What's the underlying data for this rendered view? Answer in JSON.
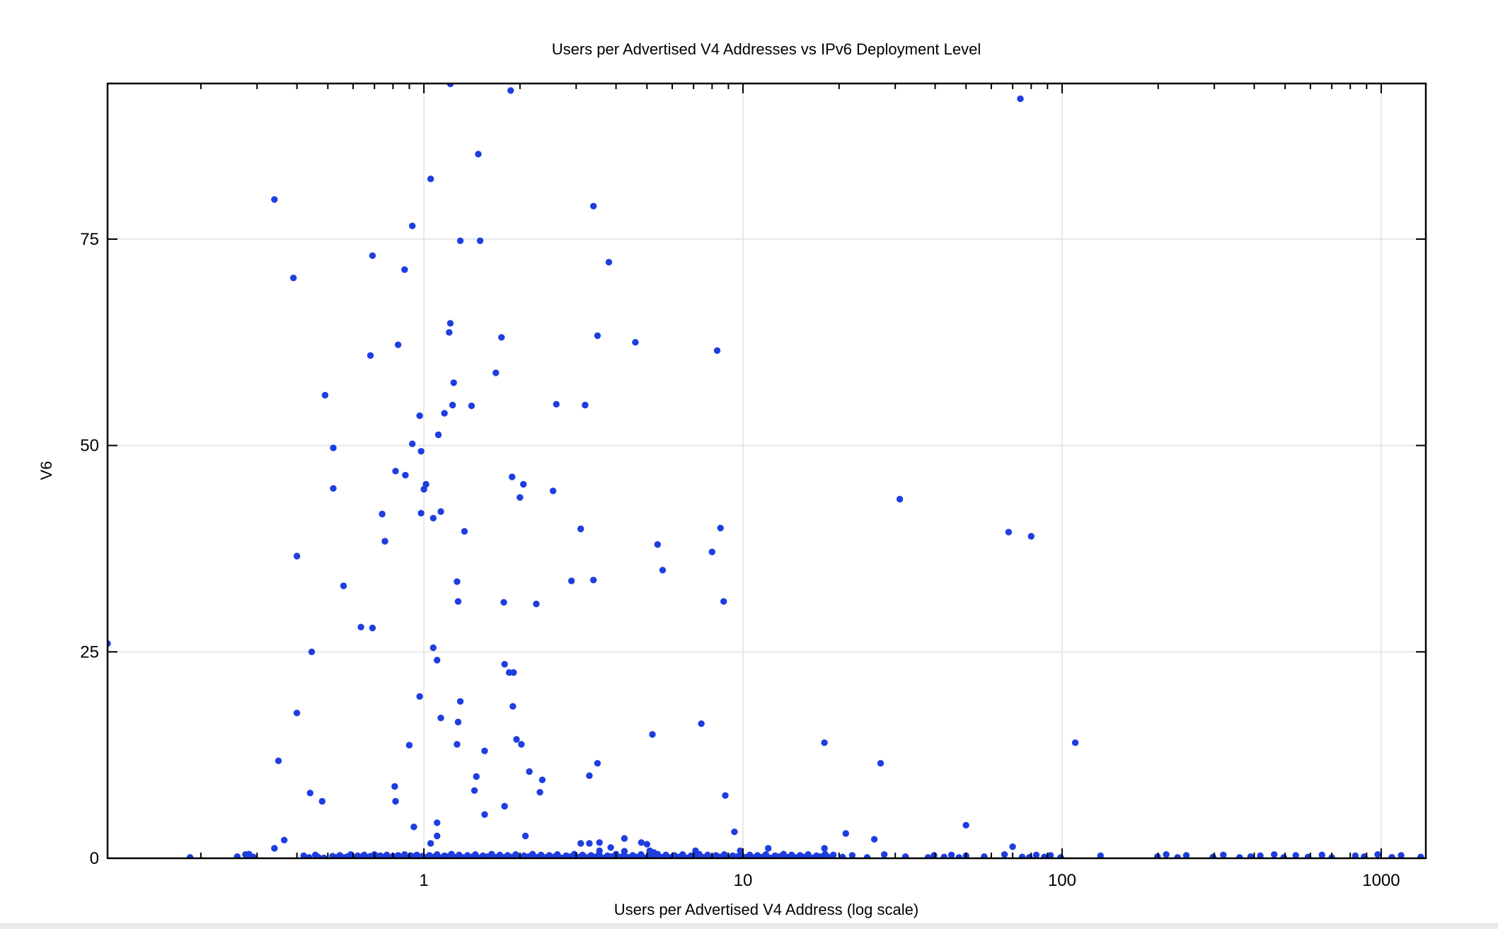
{
  "title": "Users per Advertised V4 Addresses vs IPv6 Deployment Level",
  "axes": {
    "x_label": "Users per Advertised V4 Address (log scale)",
    "y_label": "V6",
    "x_tick_labels": [
      "1",
      "10",
      "100",
      "1000"
    ],
    "y_tick_labels": [
      "0",
      "25",
      "50",
      "75"
    ]
  },
  "colors": {
    "point": "#1e3ee0",
    "grid": "#e8e8e8",
    "axis": "#000000",
    "background": "#ffffff",
    "bottom_strip": "#e9ebed"
  },
  "chart_data": {
    "type": "scatter",
    "title": "Users per Advertised V4 Addresses vs IPv6 Deployment Level",
    "xlabel": "Users per Advertised V4 Address (log scale)",
    "ylabel": "V6",
    "x_scale": "log",
    "xlim": [
      0.102,
      1380
    ],
    "ylim": [
      0,
      93.85
    ],
    "x_major_ticks": [
      1,
      10,
      100,
      1000
    ],
    "y_major_ticks": [
      0,
      25,
      50,
      75
    ],
    "grid": true,
    "legend": "none",
    "marker": {
      "shape": "circle",
      "radius": 4.7
    },
    "points": [
      [
        1.21,
        93.8
      ],
      [
        1.87,
        93.0
      ],
      [
        74,
        92.0
      ],
      [
        1.48,
        85.3
      ],
      [
        1.05,
        82.3
      ],
      [
        0.34,
        79.8
      ],
      [
        3.4,
        79.0
      ],
      [
        0.92,
        76.6
      ],
      [
        1.3,
        74.8
      ],
      [
        1.5,
        74.8
      ],
      [
        0.69,
        73.0
      ],
      [
        3.8,
        72.2
      ],
      [
        0.87,
        71.3
      ],
      [
        0.39,
        70.3
      ],
      [
        1.21,
        64.8
      ],
      [
        1.2,
        63.7
      ],
      [
        1.75,
        63.1
      ],
      [
        3.5,
        63.3
      ],
      [
        4.6,
        62.5
      ],
      [
        8.3,
        61.5
      ],
      [
        0.83,
        62.2
      ],
      [
        0.68,
        60.9
      ],
      [
        1.68,
        58.8
      ],
      [
        1.24,
        57.6
      ],
      [
        0.49,
        56.1
      ],
      [
        1.23,
        54.9
      ],
      [
        1.41,
        54.8
      ],
      [
        2.6,
        55.0
      ],
      [
        3.2,
        54.9
      ],
      [
        1.16,
        53.9
      ],
      [
        0.97,
        53.6
      ],
      [
        1.11,
        51.3
      ],
      [
        0.92,
        50.2
      ],
      [
        0.52,
        49.7
      ],
      [
        0.98,
        49.3
      ],
      [
        0.815,
        46.9
      ],
      [
        0.875,
        46.4
      ],
      [
        1.015,
        45.3
      ],
      [
        1.0,
        44.7
      ],
      [
        0.52,
        44.8
      ],
      [
        1.89,
        46.2
      ],
      [
        2.05,
        45.3
      ],
      [
        2.54,
        44.5
      ],
      [
        2.0,
        43.7
      ],
      [
        31,
        43.5
      ],
      [
        0.74,
        41.7
      ],
      [
        0.98,
        41.8
      ],
      [
        1.07,
        41.2
      ],
      [
        1.13,
        42.0
      ],
      [
        1.34,
        39.6
      ],
      [
        0.755,
        38.4
      ],
      [
        3.1,
        39.9
      ],
      [
        8.5,
        40.0
      ],
      [
        5.4,
        38.0
      ],
      [
        8.0,
        37.1
      ],
      [
        68,
        39.5
      ],
      [
        80,
        39.0
      ],
      [
        0.4,
        36.6
      ],
      [
        0.56,
        33.0
      ],
      [
        1.27,
        33.5
      ],
      [
        5.6,
        34.9
      ],
      [
        2.9,
        33.6
      ],
      [
        3.4,
        33.7
      ],
      [
        8.7,
        31.1
      ],
      [
        1.28,
        31.1
      ],
      [
        1.78,
        31.0
      ],
      [
        2.25,
        30.8
      ],
      [
        0.102,
        26.0
      ],
      [
        0.445,
        25.0
      ],
      [
        0.635,
        28.0
      ],
      [
        0.69,
        27.9
      ],
      [
        1.07,
        25.5
      ],
      [
        1.1,
        24.0
      ],
      [
        1.79,
        23.5
      ],
      [
        1.85,
        22.5
      ],
      [
        1.91,
        22.5
      ],
      [
        0.97,
        19.6
      ],
      [
        1.3,
        19.0
      ],
      [
        1.9,
        18.4
      ],
      [
        0.4,
        17.6
      ],
      [
        1.13,
        17.0
      ],
      [
        1.28,
        16.5
      ],
      [
        7.4,
        16.3
      ],
      [
        5.2,
        15.0
      ],
      [
        18,
        14.0
      ],
      [
        110,
        14.0
      ],
      [
        0.9,
        13.7
      ],
      [
        1.27,
        13.8
      ],
      [
        1.95,
        14.4
      ],
      [
        2.02,
        13.8
      ],
      [
        1.55,
        13.0
      ],
      [
        3.5,
        11.5
      ],
      [
        3.3,
        10.0
      ],
      [
        0.35,
        11.8
      ],
      [
        27,
        11.5
      ],
      [
        2.14,
        10.5
      ],
      [
        2.35,
        9.5
      ],
      [
        1.46,
        9.9
      ],
      [
        1.44,
        8.2
      ],
      [
        2.31,
        8.0
      ],
      [
        0.81,
        8.7
      ],
      [
        0.815,
        6.9
      ],
      [
        0.44,
        7.9
      ],
      [
        0.48,
        6.9
      ],
      [
        8.8,
        7.6
      ],
      [
        1.79,
        6.3
      ],
      [
        1.55,
        5.3
      ],
      [
        1.1,
        4.3
      ],
      [
        0.93,
        3.8
      ],
      [
        9.4,
        3.2
      ],
      [
        21,
        3.0
      ],
      [
        50,
        4.0
      ],
      [
        25.8,
        2.3
      ],
      [
        5.0,
        1.7
      ],
      [
        0.365,
        2.2
      ],
      [
        0.34,
        1.2
      ],
      [
        1.1,
        2.7
      ],
      [
        1.05,
        1.8
      ],
      [
        2.08,
        2.7
      ],
      [
        3.1,
        1.8
      ],
      [
        3.3,
        1.8
      ],
      [
        3.55,
        1.9
      ],
      [
        3.55,
        0.9
      ],
      [
        3.85,
        1.3
      ],
      [
        4.25,
        2.4
      ],
      [
        4.25,
        0.85
      ],
      [
        4.8,
        1.9
      ],
      [
        5.1,
        0.9
      ],
      [
        5.25,
        0.7
      ],
      [
        7.1,
        0.9
      ],
      [
        12,
        1.2
      ],
      [
        18,
        1.2
      ],
      [
        9.8,
        0.9
      ],
      [
        70,
        1.4
      ],
      [
        0.185,
        0.1
      ],
      [
        0.26,
        0.2
      ],
      [
        0.276,
        0.45
      ],
      [
        0.283,
        0.5
      ],
      [
        0.292,
        0.15
      ],
      [
        0.42,
        0.3
      ],
      [
        0.437,
        0.1
      ],
      [
        0.457,
        0.4
      ],
      [
        0.466,
        0.15
      ],
      [
        0.486,
        0.05
      ],
      [
        0.517,
        0.25
      ],
      [
        0.53,
        0.1
      ],
      [
        0.545,
        0.35
      ],
      [
        0.56,
        0.1
      ],
      [
        0.575,
        0.2
      ],
      [
        0.59,
        0.45
      ],
      [
        0.605,
        0.1
      ],
      [
        0.62,
        0.3
      ],
      [
        0.635,
        0.15
      ],
      [
        0.65,
        0.4
      ],
      [
        0.665,
        0.1
      ],
      [
        0.68,
        0.25
      ],
      [
        0.7,
        0.45
      ],
      [
        0.715,
        0.1
      ],
      [
        0.73,
        0.3
      ],
      [
        0.75,
        0.15
      ],
      [
        0.765,
        0.4
      ],
      [
        0.78,
        0.1
      ],
      [
        0.8,
        0.25
      ],
      [
        0.815,
        0.05
      ],
      [
        0.83,
        0.35
      ],
      [
        0.85,
        0.15
      ],
      [
        0.87,
        0.45
      ],
      [
        0.89,
        0.1
      ],
      [
        0.91,
        0.3
      ],
      [
        0.93,
        0.2
      ],
      [
        0.95,
        0.4
      ],
      [
        0.97,
        0.1
      ],
      [
        0.99,
        0.25
      ],
      [
        1.01,
        0.1
      ],
      [
        1.04,
        0.35
      ],
      [
        1.07,
        0.15
      ],
      [
        1.1,
        0.45
      ],
      [
        1.13,
        0.05
      ],
      [
        1.16,
        0.3
      ],
      [
        1.19,
        0.2
      ],
      [
        1.22,
        0.5
      ],
      [
        1.26,
        0.12
      ],
      [
        1.29,
        0.4
      ],
      [
        1.33,
        0.1
      ],
      [
        1.37,
        0.35
      ],
      [
        1.41,
        0.15
      ],
      [
        1.45,
        0.45
      ],
      [
        1.49,
        0.05
      ],
      [
        1.53,
        0.3
      ],
      [
        1.58,
        0.2
      ],
      [
        1.63,
        0.5
      ],
      [
        1.68,
        0.12
      ],
      [
        1.73,
        0.4
      ],
      [
        1.78,
        0.1
      ],
      [
        1.83,
        0.35
      ],
      [
        1.89,
        0.15
      ],
      [
        1.94,
        0.45
      ],
      [
        2.0,
        0.05
      ],
      [
        2.06,
        0.3
      ],
      [
        2.13,
        0.2
      ],
      [
        2.19,
        0.5
      ],
      [
        2.26,
        0.12
      ],
      [
        2.33,
        0.4
      ],
      [
        2.4,
        0.1
      ],
      [
        2.47,
        0.35
      ],
      [
        2.55,
        0.15
      ],
      [
        2.62,
        0.45
      ],
      [
        2.7,
        0.05
      ],
      [
        2.79,
        0.3
      ],
      [
        2.87,
        0.2
      ],
      [
        2.96,
        0.5
      ],
      [
        3.05,
        0.12
      ],
      [
        3.14,
        0.4
      ],
      [
        3.24,
        0.1
      ],
      [
        3.34,
        0.35
      ],
      [
        3.44,
        0.15
      ],
      [
        3.54,
        0.45
      ],
      [
        3.65,
        0.05
      ],
      [
        3.76,
        0.3
      ],
      [
        3.88,
        0.2
      ],
      [
        4.0,
        0.5
      ],
      [
        4.12,
        0.12
      ],
      [
        4.24,
        0.4
      ],
      [
        4.37,
        0.1
      ],
      [
        4.51,
        0.35
      ],
      [
        4.64,
        0.15
      ],
      [
        4.79,
        0.45
      ],
      [
        4.93,
        0.05
      ],
      [
        5.08,
        0.3
      ],
      [
        5.24,
        0.2
      ],
      [
        5.4,
        0.5
      ],
      [
        5.56,
        0.12
      ],
      [
        5.73,
        0.4
      ],
      [
        5.91,
        0.1
      ],
      [
        6.09,
        0.35
      ],
      [
        6.27,
        0.15
      ],
      [
        6.47,
        0.45
      ],
      [
        6.66,
        0.05
      ],
      [
        6.87,
        0.3
      ],
      [
        7.08,
        0.2
      ],
      [
        7.29,
        0.5
      ],
      [
        7.52,
        0.12
      ],
      [
        7.75,
        0.4
      ],
      [
        7.98,
        0.1
      ],
      [
        8.23,
        0.35
      ],
      [
        8.48,
        0.15
      ],
      [
        8.74,
        0.45
      ],
      [
        9.0,
        0.05
      ],
      [
        9.28,
        0.3
      ],
      [
        9.56,
        0.2
      ],
      [
        9.85,
        0.45
      ],
      [
        10.2,
        0.12
      ],
      [
        10.5,
        0.4
      ],
      [
        10.8,
        0.1
      ],
      [
        11.1,
        0.35
      ],
      [
        11.5,
        0.15
      ],
      [
        11.8,
        0.45
      ],
      [
        12.2,
        0.05
      ],
      [
        12.6,
        0.3
      ],
      [
        13.0,
        0.2
      ],
      [
        13.4,
        0.5
      ],
      [
        13.8,
        0.12
      ],
      [
        14.2,
        0.4
      ],
      [
        14.6,
        0.1
      ],
      [
        15.1,
        0.35
      ],
      [
        15.5,
        0.15
      ],
      [
        16.0,
        0.45
      ],
      [
        16.5,
        0.05
      ],
      [
        17.0,
        0.3
      ],
      [
        17.5,
        0.2
      ],
      [
        18.1,
        0.5
      ],
      [
        18.6,
        0.12
      ],
      [
        19.2,
        0.4
      ],
      [
        20.5,
        0.15
      ],
      [
        22,
        0.35
      ],
      [
        24.5,
        0.1
      ],
      [
        27.7,
        0.45
      ],
      [
        32.3,
        0.2
      ],
      [
        38,
        0.1
      ],
      [
        39.7,
        0.35
      ],
      [
        42.7,
        0.15
      ],
      [
        45,
        0.4
      ],
      [
        47.5,
        0.1
      ],
      [
        50,
        0.3
      ],
      [
        57,
        0.2
      ],
      [
        66,
        0.45
      ],
      [
        75,
        0.15
      ],
      [
        79,
        0.12
      ],
      [
        83,
        0.4
      ],
      [
        88,
        0.15
      ],
      [
        92,
        0.35
      ],
      [
        99,
        0.1
      ],
      [
        132,
        0.3
      ],
      [
        199,
        0.2
      ],
      [
        212,
        0.45
      ],
      [
        230,
        0.1
      ],
      [
        245,
        0.35
      ],
      [
        297,
        0.15
      ],
      [
        320,
        0.4
      ],
      [
        360,
        0.1
      ],
      [
        418,
        0.3
      ],
      [
        390,
        0.2
      ],
      [
        462,
        0.45
      ],
      [
        495,
        0.1
      ],
      [
        540,
        0.35
      ],
      [
        590,
        0.15
      ],
      [
        652,
        0.4
      ],
      [
        700,
        0.1
      ],
      [
        830,
        0.3
      ],
      [
        885,
        0.2
      ],
      [
        975,
        0.45
      ],
      [
        1080,
        0.12
      ],
      [
        1155,
        0.35
      ],
      [
        1330,
        0.15
      ]
    ]
  }
}
